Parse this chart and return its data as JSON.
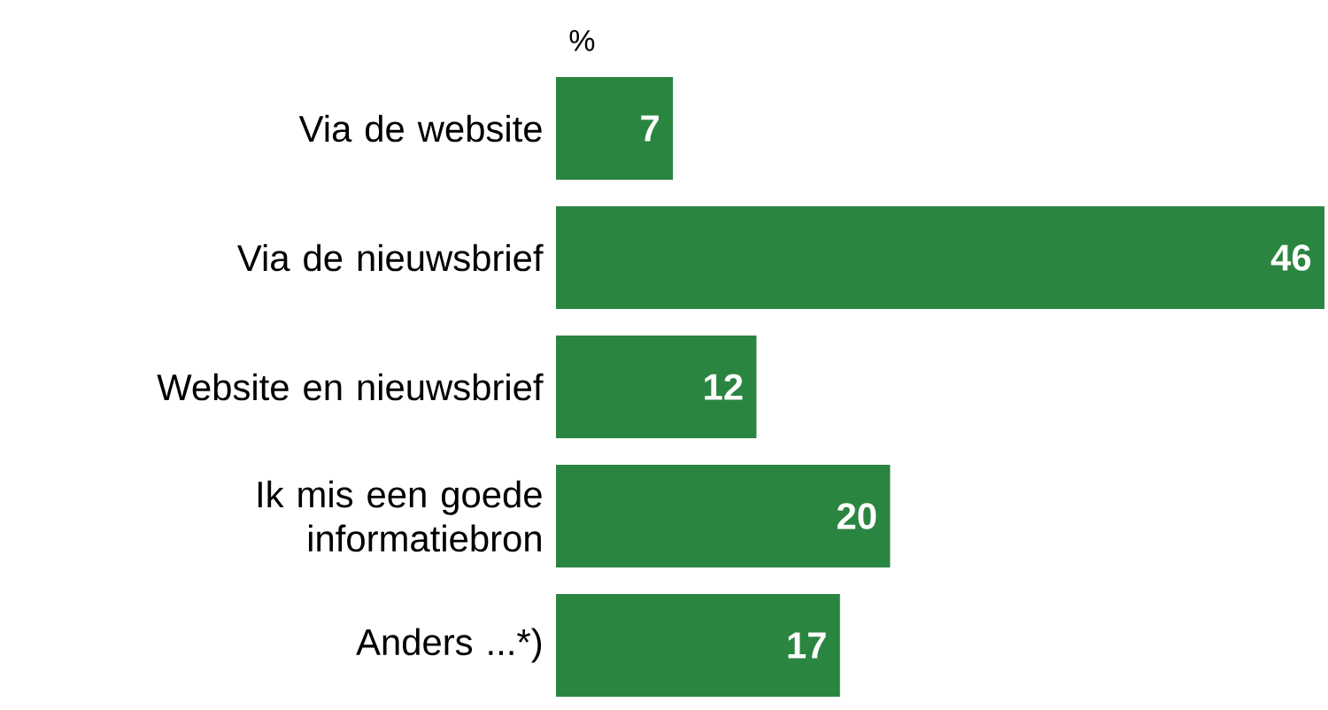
{
  "chart_data": {
    "type": "bar",
    "orientation": "horizontal",
    "xlabel": "%",
    "categories": [
      "Via de website",
      "Via de nieuwsbrief",
      "Website en nieuwsbrief",
      "Ik mis een goede informatiebron",
      "Anders ...*)"
    ],
    "values": [
      7,
      46,
      12,
      20,
      17
    ],
    "color": "#2a8540",
    "data_labels": true
  }
}
